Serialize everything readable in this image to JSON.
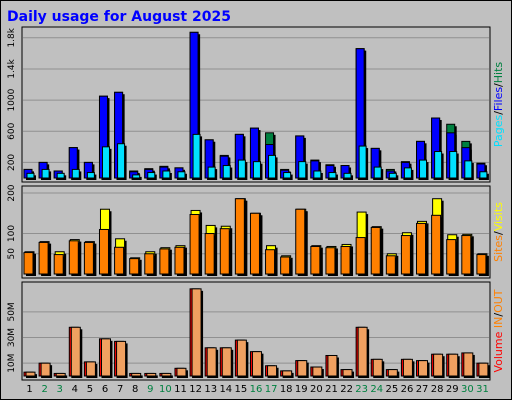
{
  "chart_data": {
    "type": "bar",
    "title": "Daily usage for August 2025",
    "days": [
      "1",
      "2",
      "3",
      "4",
      "5",
      "6",
      "7",
      "8",
      "9",
      "10",
      "11",
      "12",
      "13",
      "14",
      "15",
      "16",
      "17",
      "18",
      "19",
      "20",
      "21",
      "22",
      "23",
      "24",
      "25",
      "26",
      "27",
      "28",
      "29",
      "30",
      "31"
    ],
    "weekend_days": [
      "2",
      "3",
      "9",
      "10",
      "16",
      "17",
      "23",
      "24",
      "30",
      "31"
    ],
    "colors": {
      "title": "#0000ff",
      "hits": "#008040",
      "files": "#0000ff",
      "pages": "#00e0ff",
      "visits": "#ffff00",
      "sites": "#ff8000",
      "kbytes": "#ff0000",
      "kbytes_fill": "#f0a060",
      "weekday": "#000000",
      "weekend": "#008040",
      "sep": "#000000"
    },
    "panels": [
      {
        "id": "hits",
        "ylim": [
          0,
          1900
        ],
        "ticks": [
          "200",
          "600",
          "1000",
          "1.4k",
          "1.8k"
        ],
        "tick_values": [
          200,
          600,
          1000,
          1400,
          1800
        ],
        "label_parts": [
          {
            "text": "Pages",
            "color": "#00e0ff"
          },
          {
            "text": "/",
            "color": "#000000"
          },
          {
            "text": "Files",
            "color": "#0000ff"
          },
          {
            "text": "/",
            "color": "#000000"
          },
          {
            "text": "Hits",
            "color": "#008040"
          }
        ],
        "series": [
          {
            "key": "hits",
            "name": "Hits",
            "values": [
              110,
              200,
              90,
              390,
              200,
              1050,
              1100,
              90,
              120,
              150,
              130,
              1870,
              490,
              290,
              560,
              640,
              580,
              110,
              540,
              230,
              170,
              160,
              1660,
              380,
              110,
              210,
              470,
              770,
              690,
              470,
              190
            ]
          },
          {
            "key": "files",
            "name": "Files",
            "values": [
              110,
              200,
              90,
              390,
              200,
              1050,
              1100,
              80,
              110,
              140,
              130,
              1870,
              490,
              280,
              560,
              640,
              430,
              100,
              540,
              220,
              160,
              160,
              1660,
              380,
              90,
              200,
              470,
              770,
              580,
              390,
              180
            ]
          },
          {
            "key": "pages",
            "name": "Pages",
            "values": [
              60,
              110,
              60,
              110,
              70,
              400,
              440,
              40,
              70,
              90,
              80,
              560,
              140,
              160,
              230,
              210,
              290,
              70,
              210,
              90,
              70,
              60,
              410,
              140,
              60,
              130,
              230,
              340,
              340,
              220,
              80
            ]
          }
        ]
      },
      {
        "id": "visits",
        "ylim": [
          0,
          210
        ],
        "ticks": [
          "50",
          "100",
          "200"
        ],
        "tick_values": [
          50,
          100,
          200
        ],
        "label_parts": [
          {
            "text": "Sites",
            "color": "#ff8000"
          },
          {
            "text": "/",
            "color": "#000000"
          },
          {
            "text": "Visits",
            "color": "#ffff00"
          }
        ],
        "series": [
          {
            "key": "visits",
            "name": "Visits",
            "values": [
              55,
              80,
              55,
              85,
              80,
              160,
              87,
              40,
              55,
              65,
              70,
              157,
              120,
              118,
              186,
              150,
              70,
              45,
              160,
              70,
              68,
              73,
              153,
              117,
              50,
              102,
              130,
              186,
              97,
              98,
              50
            ]
          },
          {
            "key": "sites",
            "name": "Sites",
            "values": [
              53,
              78,
              48,
              82,
              78,
              110,
              66,
              38,
              50,
              62,
              66,
              147,
              100,
              112,
              186,
              150,
              60,
              42,
              160,
              68,
              65,
              68,
              90,
              115,
              45,
              95,
              125,
              145,
              85,
              95,
              48
            ]
          }
        ]
      },
      {
        "id": "volume",
        "ylim": [
          0,
          71
        ],
        "ticks": [
          "10M",
          "30M",
          "50M"
        ],
        "tick_values": [
          10,
          30,
          50
        ],
        "label_parts": [
          {
            "text": "Volume",
            "color": "#ff0000"
          },
          {
            "text": "  ",
            "color": "#000000"
          },
          {
            "text": "IN",
            "color": "#ff8000"
          },
          {
            "text": "/",
            "color": "#000000"
          },
          {
            "text": "OUT",
            "color": "#ff8000"
          }
        ],
        "series": [
          {
            "key": "kbytes",
            "name": "Volume",
            "values": [
              3,
              10,
              2,
              38,
              11,
              29,
              27,
              2,
              2,
              2,
              6,
              68,
              22,
              22,
              28,
              19,
              8,
              4,
              12,
              7,
              16,
              5,
              38,
              13,
              5,
              13,
              12,
              17,
              17,
              18,
              10
            ]
          }
        ]
      }
    ]
  }
}
